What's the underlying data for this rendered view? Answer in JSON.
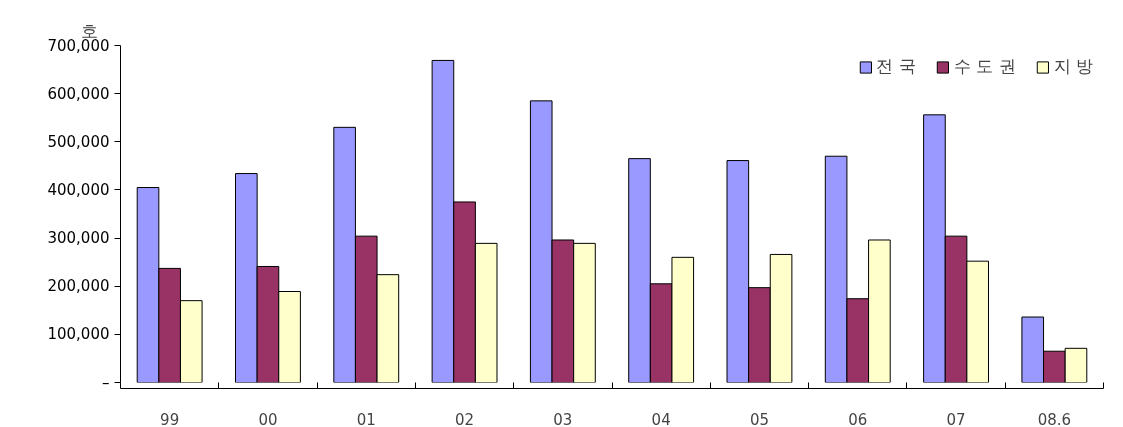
{
  "chart_data": {
    "type": "bar",
    "ylabel": "호",
    "categories": [
      "99",
      "00",
      "01",
      "02",
      "03",
      "04",
      "05",
      "06",
      "07",
      "08.6"
    ],
    "series": [
      {
        "name": "전 국",
        "color": "#9999ff",
        "values": [
          405000,
          434000,
          530000,
          669000,
          585000,
          465000,
          461000,
          470000,
          556000,
          136000
        ]
      },
      {
        "name": "수 도 권",
        "color": "#993366",
        "values": [
          237000,
          241000,
          304000,
          375000,
          296000,
          205000,
          197000,
          174000,
          304000,
          65000
        ]
      },
      {
        "name": "지 방",
        "color": "#ffffcc",
        "values": [
          170000,
          189000,
          224000,
          289000,
          289000,
          260000,
          266000,
          296000,
          252000,
          71000
        ]
      }
    ],
    "ylim": [
      0,
      700000
    ],
    "yticks": [
      {
        "value": 0,
        "label": "–"
      },
      {
        "value": 100000,
        "label": "100,000"
      },
      {
        "value": 200000,
        "label": "200,000"
      },
      {
        "value": 300000,
        "label": "300,000"
      },
      {
        "value": 400000,
        "label": "400,000"
      },
      {
        "value": 500000,
        "label": "500,000"
      },
      {
        "value": 600000,
        "label": "600,000"
      },
      {
        "value": 700000,
        "label": "700,000"
      }
    ],
    "grid": false,
    "legend": "top right"
  }
}
